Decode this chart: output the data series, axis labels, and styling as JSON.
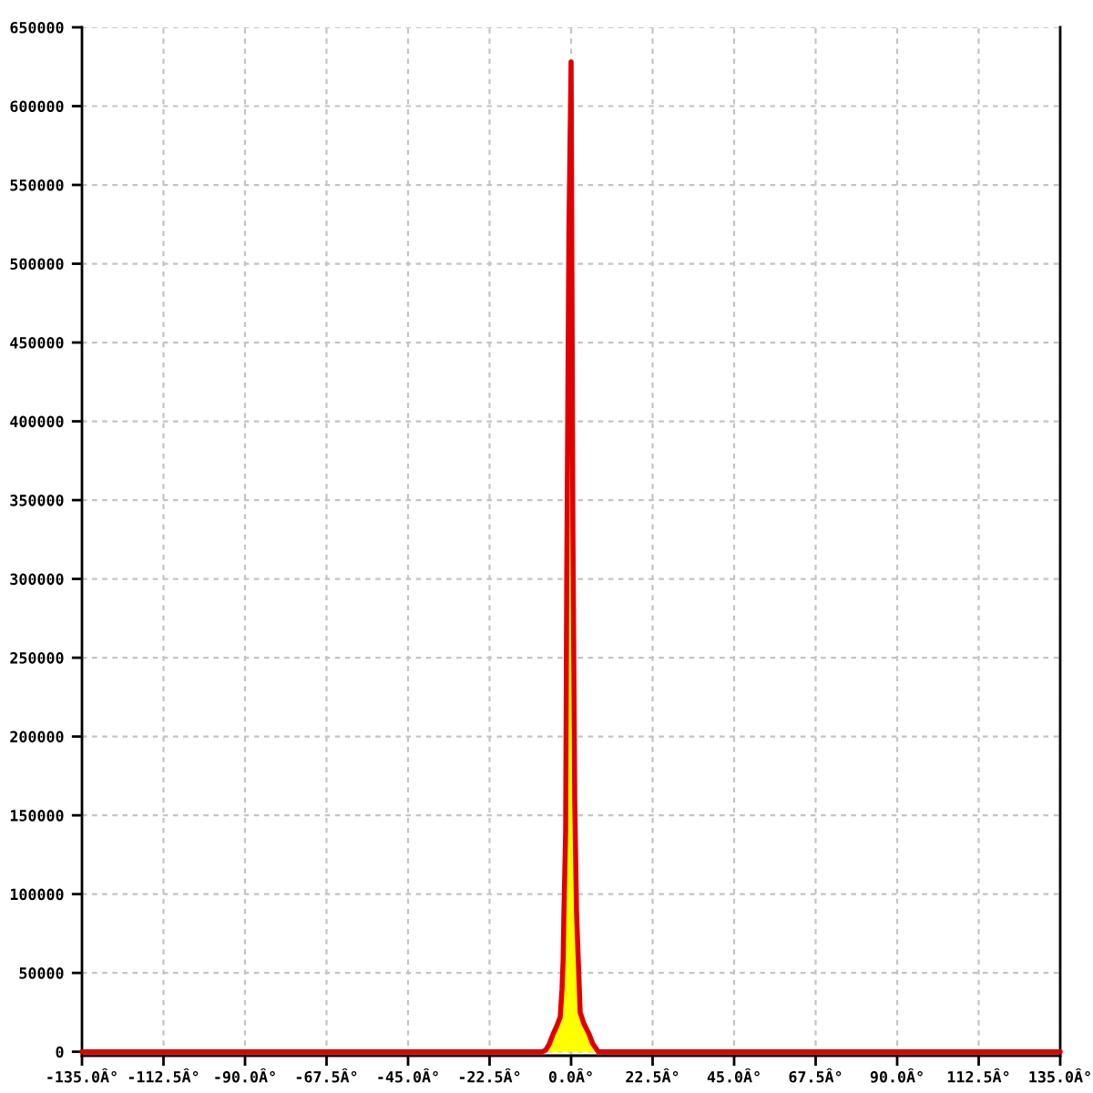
{
  "chart_data": {
    "type": "area",
    "series": [
      {
        "color": "#ffff00",
        "x": [
          -8,
          -7,
          -6,
          -5,
          -4,
          -3,
          -2.5,
          -2.2,
          -2,
          -1.5,
          -1.2,
          -0.6,
          0,
          0.5,
          1,
          1.5,
          2,
          2.5,
          3.5,
          5,
          6,
          7.5
        ],
        "values": [
          0,
          1000,
          5000,
          11000,
          16000,
          22000,
          40000,
          58000,
          85000,
          140000,
          300000,
          520000,
          628000,
          330000,
          160000,
          88000,
          57000,
          25000,
          18000,
          11000,
          5000,
          0
        ]
      },
      {
        "type": "line",
        "color": "#e00000",
        "x": [
          -135,
          -8,
          -7,
          -6,
          -5,
          -4,
          -3,
          -2.5,
          -2.2,
          -2,
          -1.5,
          -1.2,
          -0.6,
          0,
          0.5,
          1,
          1.5,
          2,
          2.5,
          3.5,
          5,
          6,
          7.5,
          135
        ],
        "values": [
          0,
          0,
          1000,
          5000,
          11000,
          16000,
          22000,
          40000,
          58000,
          85000,
          140000,
          300000,
          520000,
          628000,
          330000,
          160000,
          88000,
          57000,
          25000,
          18000,
          11000,
          5000,
          0,
          0
        ]
      }
    ],
    "xlim": [
      -135,
      135
    ],
    "ylim": [
      -2500,
      650000
    ],
    "xticks": [
      {
        "value": -135,
        "label": "-135.0Â°"
      },
      {
        "value": -112.5,
        "label": "-112.5Â°"
      },
      {
        "value": -90,
        "label": "-90.0Â°"
      },
      {
        "value": -67.5,
        "label": "-67.5Â°"
      },
      {
        "value": -45,
        "label": "-45.0Â°"
      },
      {
        "value": -22.5,
        "label": "-22.5Â°"
      },
      {
        "value": 0,
        "label": "0.0Â°"
      },
      {
        "value": 22.5,
        "label": "22.5Â°"
      },
      {
        "value": 45,
        "label": "45.0Â°"
      },
      {
        "value": 67.5,
        "label": "67.5Â°"
      },
      {
        "value": 90,
        "label": "90.0Â°"
      },
      {
        "value": 112.5,
        "label": "112.5Â°"
      },
      {
        "value": 135,
        "label": "135.0Â°"
      }
    ],
    "yticks": [
      0,
      50000,
      100000,
      150000,
      200000,
      250000,
      300000,
      350000,
      400000,
      450000,
      500000,
      550000,
      600000,
      650000
    ],
    "grid": true
  }
}
